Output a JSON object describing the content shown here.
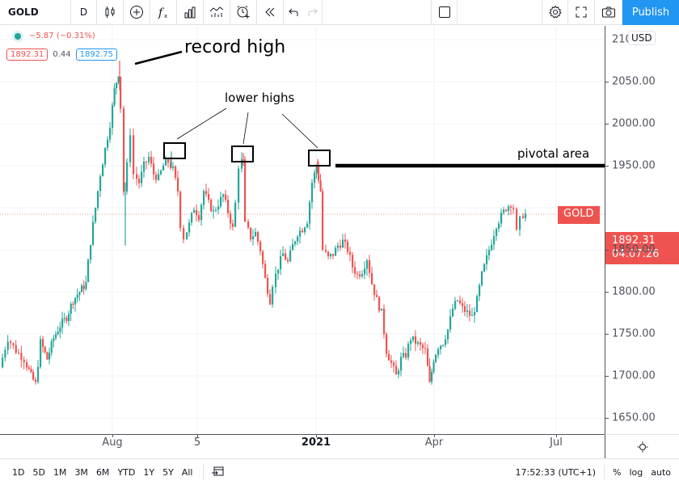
{
  "toolbar": {
    "symbol": "GOLD",
    "interval": "D",
    "icons": [
      "candles-icon",
      "add-compare-icon",
      "indicators-icon",
      "financials-icon",
      "templates-icon",
      "alert-icon",
      "replay-icon",
      "undo-icon",
      "redo-icon",
      "layout-square-icon",
      "settings-gear-icon",
      "fullscreen-icon",
      "camera-icon"
    ],
    "publish_label": "Publish"
  },
  "legend": {
    "change": "−5.87 (−0.31%)",
    "bid": "1892.31",
    "spread": "0.44",
    "ask": "1892.75"
  },
  "price_axis": {
    "currency": "USD",
    "top_label_partial": "21",
    "last_price": "1892.31",
    "countdown": "04:07:26",
    "symbol_tag": "GOLD"
  },
  "time_axis": {
    "labels": [
      {
        "text": "Aug",
        "x": 139,
        "bold": false
      },
      {
        "text": "5",
        "x": 244,
        "bold": false
      },
      {
        "text": "2021",
        "x": 391,
        "bold": true
      },
      {
        "text": "Apr",
        "x": 537,
        "bold": false
      },
      {
        "text": "Jul",
        "x": 688,
        "bold": false
      }
    ]
  },
  "bottom_bar": {
    "ranges": [
      "1D",
      "5D",
      "1M",
      "3M",
      "6M",
      "YTD",
      "1Y",
      "5Y",
      "All"
    ],
    "clock": "17:52:33 (UTC+1)",
    "percent_label": "%",
    "log_label": "log",
    "auto_label": "auto"
  },
  "annotations": {
    "record_high": "record high",
    "lower_highs": "lower highs",
    "pivotal_area": "pivotal area"
  },
  "colors": {
    "up": "#26a69a",
    "down": "#ef5350",
    "accent": "#2196f3",
    "grid": "#f0f3fa",
    "axis_text": "#50535e"
  },
  "chart_data": {
    "type": "candlestick",
    "title": "GOLD, D",
    "xlabel": "",
    "ylabel": "USD",
    "ylim": [
      1640,
      2110
    ],
    "y_ticks": [
      1650,
      1700,
      1750,
      1800,
      1850,
      1900,
      1950,
      2000,
      2050,
      2100
    ],
    "x_ticks": [
      "Aug",
      "5",
      "2021",
      "Apr",
      "Jul"
    ],
    "grid": true,
    "last_price": 1892.31,
    "pivotal_level": 1950,
    "record_high": 2075,
    "lower_highs": [
      1965,
      1965,
      1958
    ],
    "close_path": [
      {
        "x": 2,
        "close": 1710
      },
      {
        "x": 12,
        "close": 1745
      },
      {
        "x": 22,
        "close": 1730
      },
      {
        "x": 32,
        "close": 1720
      },
      {
        "x": 40,
        "close": 1700
      },
      {
        "x": 46,
        "close": 1690
      },
      {
        "x": 52,
        "close": 1740
      },
      {
        "x": 60,
        "close": 1720
      },
      {
        "x": 68,
        "close": 1745
      },
      {
        "x": 76,
        "close": 1760
      },
      {
        "x": 84,
        "close": 1770
      },
      {
        "x": 92,
        "close": 1790
      },
      {
        "x": 100,
        "close": 1800
      },
      {
        "x": 108,
        "close": 1810
      },
      {
        "x": 114,
        "close": 1860
      },
      {
        "x": 120,
        "close": 1900
      },
      {
        "x": 126,
        "close": 1940
      },
      {
        "x": 132,
        "close": 1970
      },
      {
        "x": 138,
        "close": 2000
      },
      {
        "x": 143,
        "close": 2040
      },
      {
        "x": 148,
        "close": 2060
      },
      {
        "x": 152,
        "close": 2020
      },
      {
        "x": 156,
        "close": 1920
      },
      {
        "x": 160,
        "close": 1950
      },
      {
        "x": 164,
        "close": 1990
      },
      {
        "x": 168,
        "close": 1940
      },
      {
        "x": 174,
        "close": 1930
      },
      {
        "x": 180,
        "close": 1950
      },
      {
        "x": 186,
        "close": 1960
      },
      {
        "x": 192,
        "close": 1940
      },
      {
        "x": 198,
        "close": 1935
      },
      {
        "x": 204,
        "close": 1950
      },
      {
        "x": 210,
        "close": 1955
      },
      {
        "x": 216,
        "close": 1945
      },
      {
        "x": 222,
        "close": 1920
      },
      {
        "x": 226,
        "close": 1880
      },
      {
        "x": 230,
        "close": 1865
      },
      {
        "x": 236,
        "close": 1880
      },
      {
        "x": 242,
        "close": 1900
      },
      {
        "x": 248,
        "close": 1890
      },
      {
        "x": 254,
        "close": 1920
      },
      {
        "x": 260,
        "close": 1905
      },
      {
        "x": 266,
        "close": 1895
      },
      {
        "x": 272,
        "close": 1905
      },
      {
        "x": 278,
        "close": 1915
      },
      {
        "x": 284,
        "close": 1895
      },
      {
        "x": 290,
        "close": 1875
      },
      {
        "x": 294,
        "close": 1905
      },
      {
        "x": 298,
        "close": 1950
      },
      {
        "x": 302,
        "close": 1955
      },
      {
        "x": 306,
        "close": 1880
      },
      {
        "x": 312,
        "close": 1865
      },
      {
        "x": 318,
        "close": 1870
      },
      {
        "x": 324,
        "close": 1850
      },
      {
        "x": 330,
        "close": 1815
      },
      {
        "x": 336,
        "close": 1790
      },
      {
        "x": 340,
        "close": 1810
      },
      {
        "x": 346,
        "close": 1830
      },
      {
        "x": 352,
        "close": 1845
      },
      {
        "x": 358,
        "close": 1835
      },
      {
        "x": 364,
        "close": 1855
      },
      {
        "x": 370,
        "close": 1870
      },
      {
        "x": 376,
        "close": 1875
      },
      {
        "x": 382,
        "close": 1885
      },
      {
        "x": 388,
        "close": 1930
      },
      {
        "x": 393,
        "close": 1950
      },
      {
        "x": 398,
        "close": 1920
      },
      {
        "x": 402,
        "close": 1850
      },
      {
        "x": 408,
        "close": 1840
      },
      {
        "x": 414,
        "close": 1845
      },
      {
        "x": 420,
        "close": 1855
      },
      {
        "x": 426,
        "close": 1860
      },
      {
        "x": 432,
        "close": 1850
      },
      {
        "x": 438,
        "close": 1830
      },
      {
        "x": 444,
        "close": 1820
      },
      {
        "x": 450,
        "close": 1825
      },
      {
        "x": 456,
        "close": 1840
      },
      {
        "x": 462,
        "close": 1810
      },
      {
        "x": 468,
        "close": 1790
      },
      {
        "x": 474,
        "close": 1775
      },
      {
        "x": 480,
        "close": 1730
      },
      {
        "x": 486,
        "close": 1715
      },
      {
        "x": 492,
        "close": 1700
      },
      {
        "x": 498,
        "close": 1720
      },
      {
        "x": 504,
        "close": 1725
      },
      {
        "x": 510,
        "close": 1745
      },
      {
        "x": 516,
        "close": 1740
      },
      {
        "x": 522,
        "close": 1735
      },
      {
        "x": 528,
        "close": 1730
      },
      {
        "x": 533,
        "close": 1690
      },
      {
        "x": 538,
        "close": 1720
      },
      {
        "x": 544,
        "close": 1735
      },
      {
        "x": 550,
        "close": 1740
      },
      {
        "x": 556,
        "close": 1755
      },
      {
        "x": 562,
        "close": 1780
      },
      {
        "x": 568,
        "close": 1790
      },
      {
        "x": 574,
        "close": 1780
      },
      {
        "x": 580,
        "close": 1775
      },
      {
        "x": 586,
        "close": 1770
      },
      {
        "x": 592,
        "close": 1790
      },
      {
        "x": 598,
        "close": 1820
      },
      {
        "x": 604,
        "close": 1840
      },
      {
        "x": 610,
        "close": 1860
      },
      {
        "x": 616,
        "close": 1880
      },
      {
        "x": 622,
        "close": 1890
      },
      {
        "x": 628,
        "close": 1900
      },
      {
        "x": 634,
        "close": 1905
      },
      {
        "x": 638,
        "close": 1900
      },
      {
        "x": 642,
        "close": 1870
      },
      {
        "x": 646,
        "close": 1885
      },
      {
        "x": 649,
        "close": 1892
      }
    ]
  }
}
